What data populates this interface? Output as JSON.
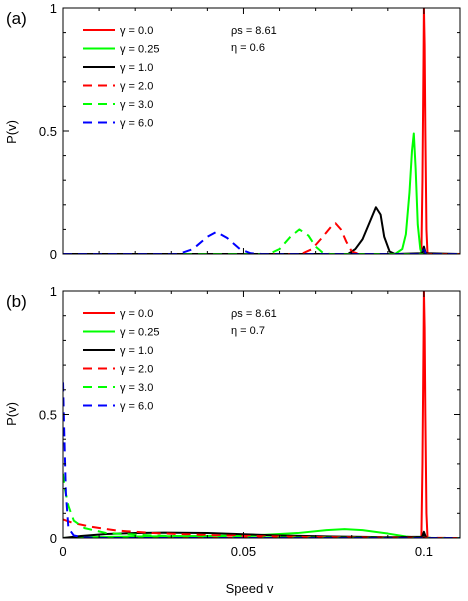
{
  "chart_data": [
    {
      "type": "line",
      "panel_label": "(a)",
      "ylabel": "P(v)",
      "xlabel": "",
      "xlim": [
        0,
        0.11
      ],
      "ylim": [
        0,
        1
      ],
      "xticks": [
        {
          "value": 0.0,
          "label": ""
        },
        {
          "value": 0.05,
          "label": ""
        },
        {
          "value": 0.1,
          "label": ""
        }
      ],
      "yticks": [
        {
          "value": 0,
          "label": "0"
        },
        {
          "value": 0.5,
          "label": "0.5"
        },
        {
          "value": 1,
          "label": "1"
        }
      ],
      "annotations": [
        "ρs = 8.61",
        "η = 0.6"
      ],
      "legend_position": "top-left",
      "series": [
        {
          "name": "γ = 0.0",
          "color": "#ff0000",
          "dash": "solid",
          "points": [
            [
              0,
              0
            ],
            [
              0.0993,
              0
            ],
            [
              0.0996,
              0.3
            ],
            [
              0.0999,
              0.8
            ],
            [
              0.1,
              1.0
            ],
            [
              0.1002,
              0.85
            ],
            [
              0.1004,
              0.5
            ],
            [
              0.1007,
              0.1
            ],
            [
              0.101,
              0
            ],
            [
              0.11,
              0
            ]
          ]
        },
        {
          "name": "γ = 0.25",
          "color": "#00ff00",
          "dash": "solid",
          "points": [
            [
              0,
              0
            ],
            [
              0.092,
              0
            ],
            [
              0.094,
              0.02
            ],
            [
              0.095,
              0.08
            ],
            [
              0.096,
              0.25
            ],
            [
              0.0967,
              0.42
            ],
            [
              0.0972,
              0.49
            ],
            [
              0.0977,
              0.35
            ],
            [
              0.0983,
              0.12
            ],
            [
              0.099,
              0.02
            ],
            [
              0.0995,
              0
            ],
            [
              0.11,
              0
            ]
          ]
        },
        {
          "name": "γ = 1.0",
          "color": "#000000",
          "dash": "solid",
          "points": [
            [
              0,
              0
            ],
            [
              0.079,
              0
            ],
            [
              0.081,
              0.02
            ],
            [
              0.083,
              0.06
            ],
            [
              0.085,
              0.13
            ],
            [
              0.0867,
              0.19
            ],
            [
              0.088,
              0.16
            ],
            [
              0.089,
              0.07
            ],
            [
              0.0905,
              0.01
            ],
            [
              0.092,
              0
            ],
            [
              0.0995,
              0.003
            ],
            [
              0.1,
              0.03
            ],
            [
              0.1005,
              0.003
            ],
            [
              0.11,
              0
            ]
          ]
        },
        {
          "name": "γ = 2.0",
          "color": "#ff0000",
          "dash": "dashed",
          "points": [
            [
              0,
              0
            ],
            [
              0.066,
              0
            ],
            [
              0.069,
              0.02
            ],
            [
              0.072,
              0.07
            ],
            [
              0.0745,
              0.115
            ],
            [
              0.0755,
              0.125
            ],
            [
              0.077,
              0.1
            ],
            [
              0.0785,
              0.05
            ],
            [
              0.08,
              0.01
            ],
            [
              0.082,
              0
            ],
            [
              0.11,
              0
            ]
          ]
        },
        {
          "name": "γ = 3.0",
          "color": "#00ff00",
          "dash": "dashed",
          "points": [
            [
              0,
              0
            ],
            [
              0.057,
              0
            ],
            [
              0.06,
              0.02
            ],
            [
              0.063,
              0.07
            ],
            [
              0.0655,
              0.1
            ],
            [
              0.068,
              0.075
            ],
            [
              0.07,
              0.03
            ],
            [
              0.072,
              0.005
            ],
            [
              0.074,
              0
            ],
            [
              0.11,
              0
            ]
          ]
        },
        {
          "name": "γ = 6.0",
          "color": "#0000ff",
          "dash": "dashed",
          "points": [
            [
              0,
              0
            ],
            [
              0.032,
              0
            ],
            [
              0.036,
              0.02
            ],
            [
              0.04,
              0.07
            ],
            [
              0.0425,
              0.09
            ],
            [
              0.0455,
              0.065
            ],
            [
              0.049,
              0.02
            ],
            [
              0.052,
              0.003
            ],
            [
              0.055,
              0
            ],
            [
              0.0995,
              0
            ],
            [
              0.1,
              0.02
            ],
            [
              0.1005,
              0
            ],
            [
              0.11,
              0
            ]
          ]
        }
      ]
    },
    {
      "type": "line",
      "panel_label": "(b)",
      "ylabel": "P(v)",
      "xlabel": "Speed v",
      "xlim": [
        0,
        0.11
      ],
      "ylim": [
        0,
        1
      ],
      "xticks": [
        {
          "value": 0.0,
          "label": "0"
        },
        {
          "value": 0.05,
          "label": "0.05"
        },
        {
          "value": 0.1,
          "label": "0.1"
        }
      ],
      "yticks": [
        {
          "value": 0,
          "label": "0"
        },
        {
          "value": 0.5,
          "label": "0.5"
        },
        {
          "value": 1,
          "label": "1"
        }
      ],
      "annotations": [
        "ρs = 8.61",
        "η = 0.7"
      ],
      "legend_position": "top-left",
      "series": [
        {
          "name": "γ = 0.0",
          "color": "#ff0000",
          "dash": "solid",
          "points": [
            [
              0,
              0
            ],
            [
              0.0993,
              0
            ],
            [
              0.0996,
              0.3
            ],
            [
              0.0999,
              0.8
            ],
            [
              0.1,
              1.0
            ],
            [
              0.1002,
              0.85
            ],
            [
              0.1004,
              0.5
            ],
            [
              0.1007,
              0.1
            ],
            [
              0.101,
              0
            ],
            [
              0.11,
              0
            ]
          ]
        },
        {
          "name": "γ = 0.25",
          "color": "#00ff00",
          "dash": "solid",
          "points": [
            [
              0,
              0
            ],
            [
              0.005,
              0.003
            ],
            [
              0.02,
              0.006
            ],
            [
              0.04,
              0.008
            ],
            [
              0.055,
              0.012
            ],
            [
              0.065,
              0.02
            ],
            [
              0.073,
              0.032
            ],
            [
              0.078,
              0.036
            ],
            [
              0.083,
              0.032
            ],
            [
              0.09,
              0.018
            ],
            [
              0.095,
              0.006
            ],
            [
              0.098,
              0.002
            ],
            [
              0.1,
              0
            ],
            [
              0.11,
              0
            ]
          ]
        },
        {
          "name": "γ = 1.0",
          "color": "#000000",
          "dash": "solid",
          "points": [
            [
              0,
              0
            ],
            [
              0.005,
              0.008
            ],
            [
              0.012,
              0.016
            ],
            [
              0.02,
              0.02
            ],
            [
              0.028,
              0.022
            ],
            [
              0.04,
              0.02
            ],
            [
              0.05,
              0.015
            ],
            [
              0.06,
              0.01
            ],
            [
              0.075,
              0.006
            ],
            [
              0.09,
              0.003
            ],
            [
              0.0995,
              0.005
            ],
            [
              0.1,
              0.025
            ],
            [
              0.1005,
              0.005
            ],
            [
              0.101,
              0
            ],
            [
              0.11,
              0
            ]
          ]
        },
        {
          "name": "γ = 2.0",
          "color": "#ff0000",
          "dash": "dashed",
          "points": [
            [
              0,
              0.075
            ],
            [
              0.003,
              0.06
            ],
            [
              0.008,
              0.045
            ],
            [
              0.015,
              0.03
            ],
            [
              0.025,
              0.02
            ],
            [
              0.04,
              0.012
            ],
            [
              0.055,
              0.007
            ],
            [
              0.07,
              0.004
            ],
            [
              0.085,
              0.002
            ],
            [
              0.1,
              0.001
            ],
            [
              0.11,
              0
            ]
          ]
        },
        {
          "name": "γ = 3.0",
          "color": "#00ff00",
          "dash": "dashed",
          "points": [
            [
              0,
              0.26
            ],
            [
              0.0005,
              0.2
            ],
            [
              0.0015,
              0.13
            ],
            [
              0.003,
              0.07
            ],
            [
              0.006,
              0.04
            ],
            [
              0.012,
              0.02
            ],
            [
              0.025,
              0.01
            ],
            [
              0.04,
              0.005
            ],
            [
              0.06,
              0.002
            ],
            [
              0.08,
              0.001
            ],
            [
              0.11,
              0
            ]
          ]
        },
        {
          "name": "γ = 6.0",
          "color": "#0000ff",
          "dash": "dashed",
          "points": [
            [
              0,
              0.63
            ],
            [
              0.0003,
              0.45
            ],
            [
              0.0008,
              0.18
            ],
            [
              0.0015,
              0.04
            ],
            [
              0.003,
              0.01
            ],
            [
              0.006,
              0.002
            ],
            [
              0.012,
              0
            ],
            [
              0.11,
              0
            ]
          ]
        }
      ]
    }
  ]
}
